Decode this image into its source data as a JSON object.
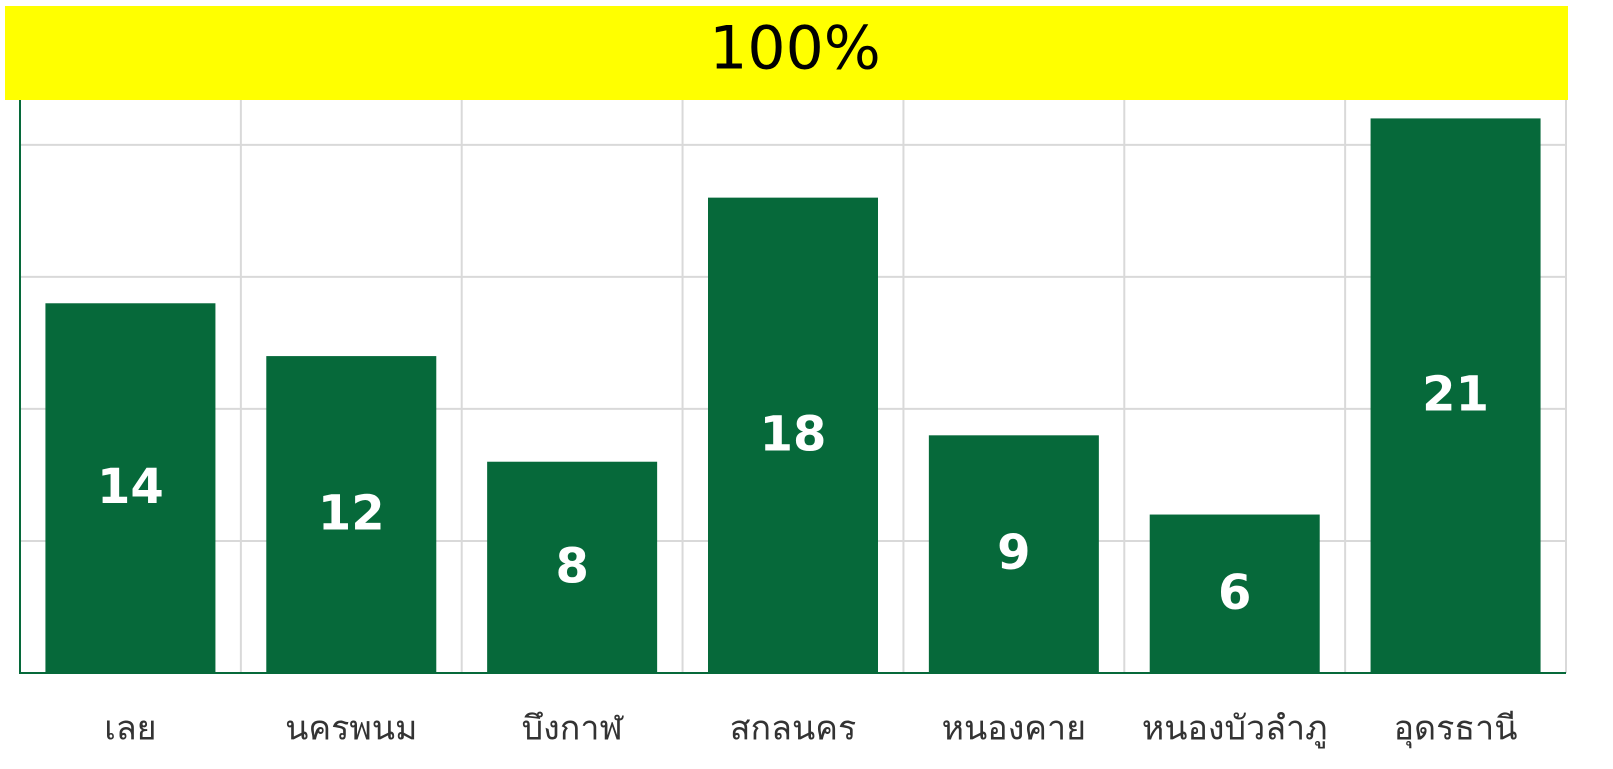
{
  "chart_data": {
    "type": "bar",
    "title": "100%",
    "categories": [
      "เลย",
      "นครพนม",
      "บึงกาฬ",
      "สกลนคร",
      "หนองคาย",
      "หนองบัวลำภู",
      "อุดรธานี"
    ],
    "values": [
      14,
      12,
      8,
      18,
      9,
      6,
      21
    ],
    "color": "#06693a",
    "ylim": [
      0,
      22
    ],
    "yticks": [
      0,
      5,
      10,
      15,
      20
    ],
    "grid": true
  }
}
